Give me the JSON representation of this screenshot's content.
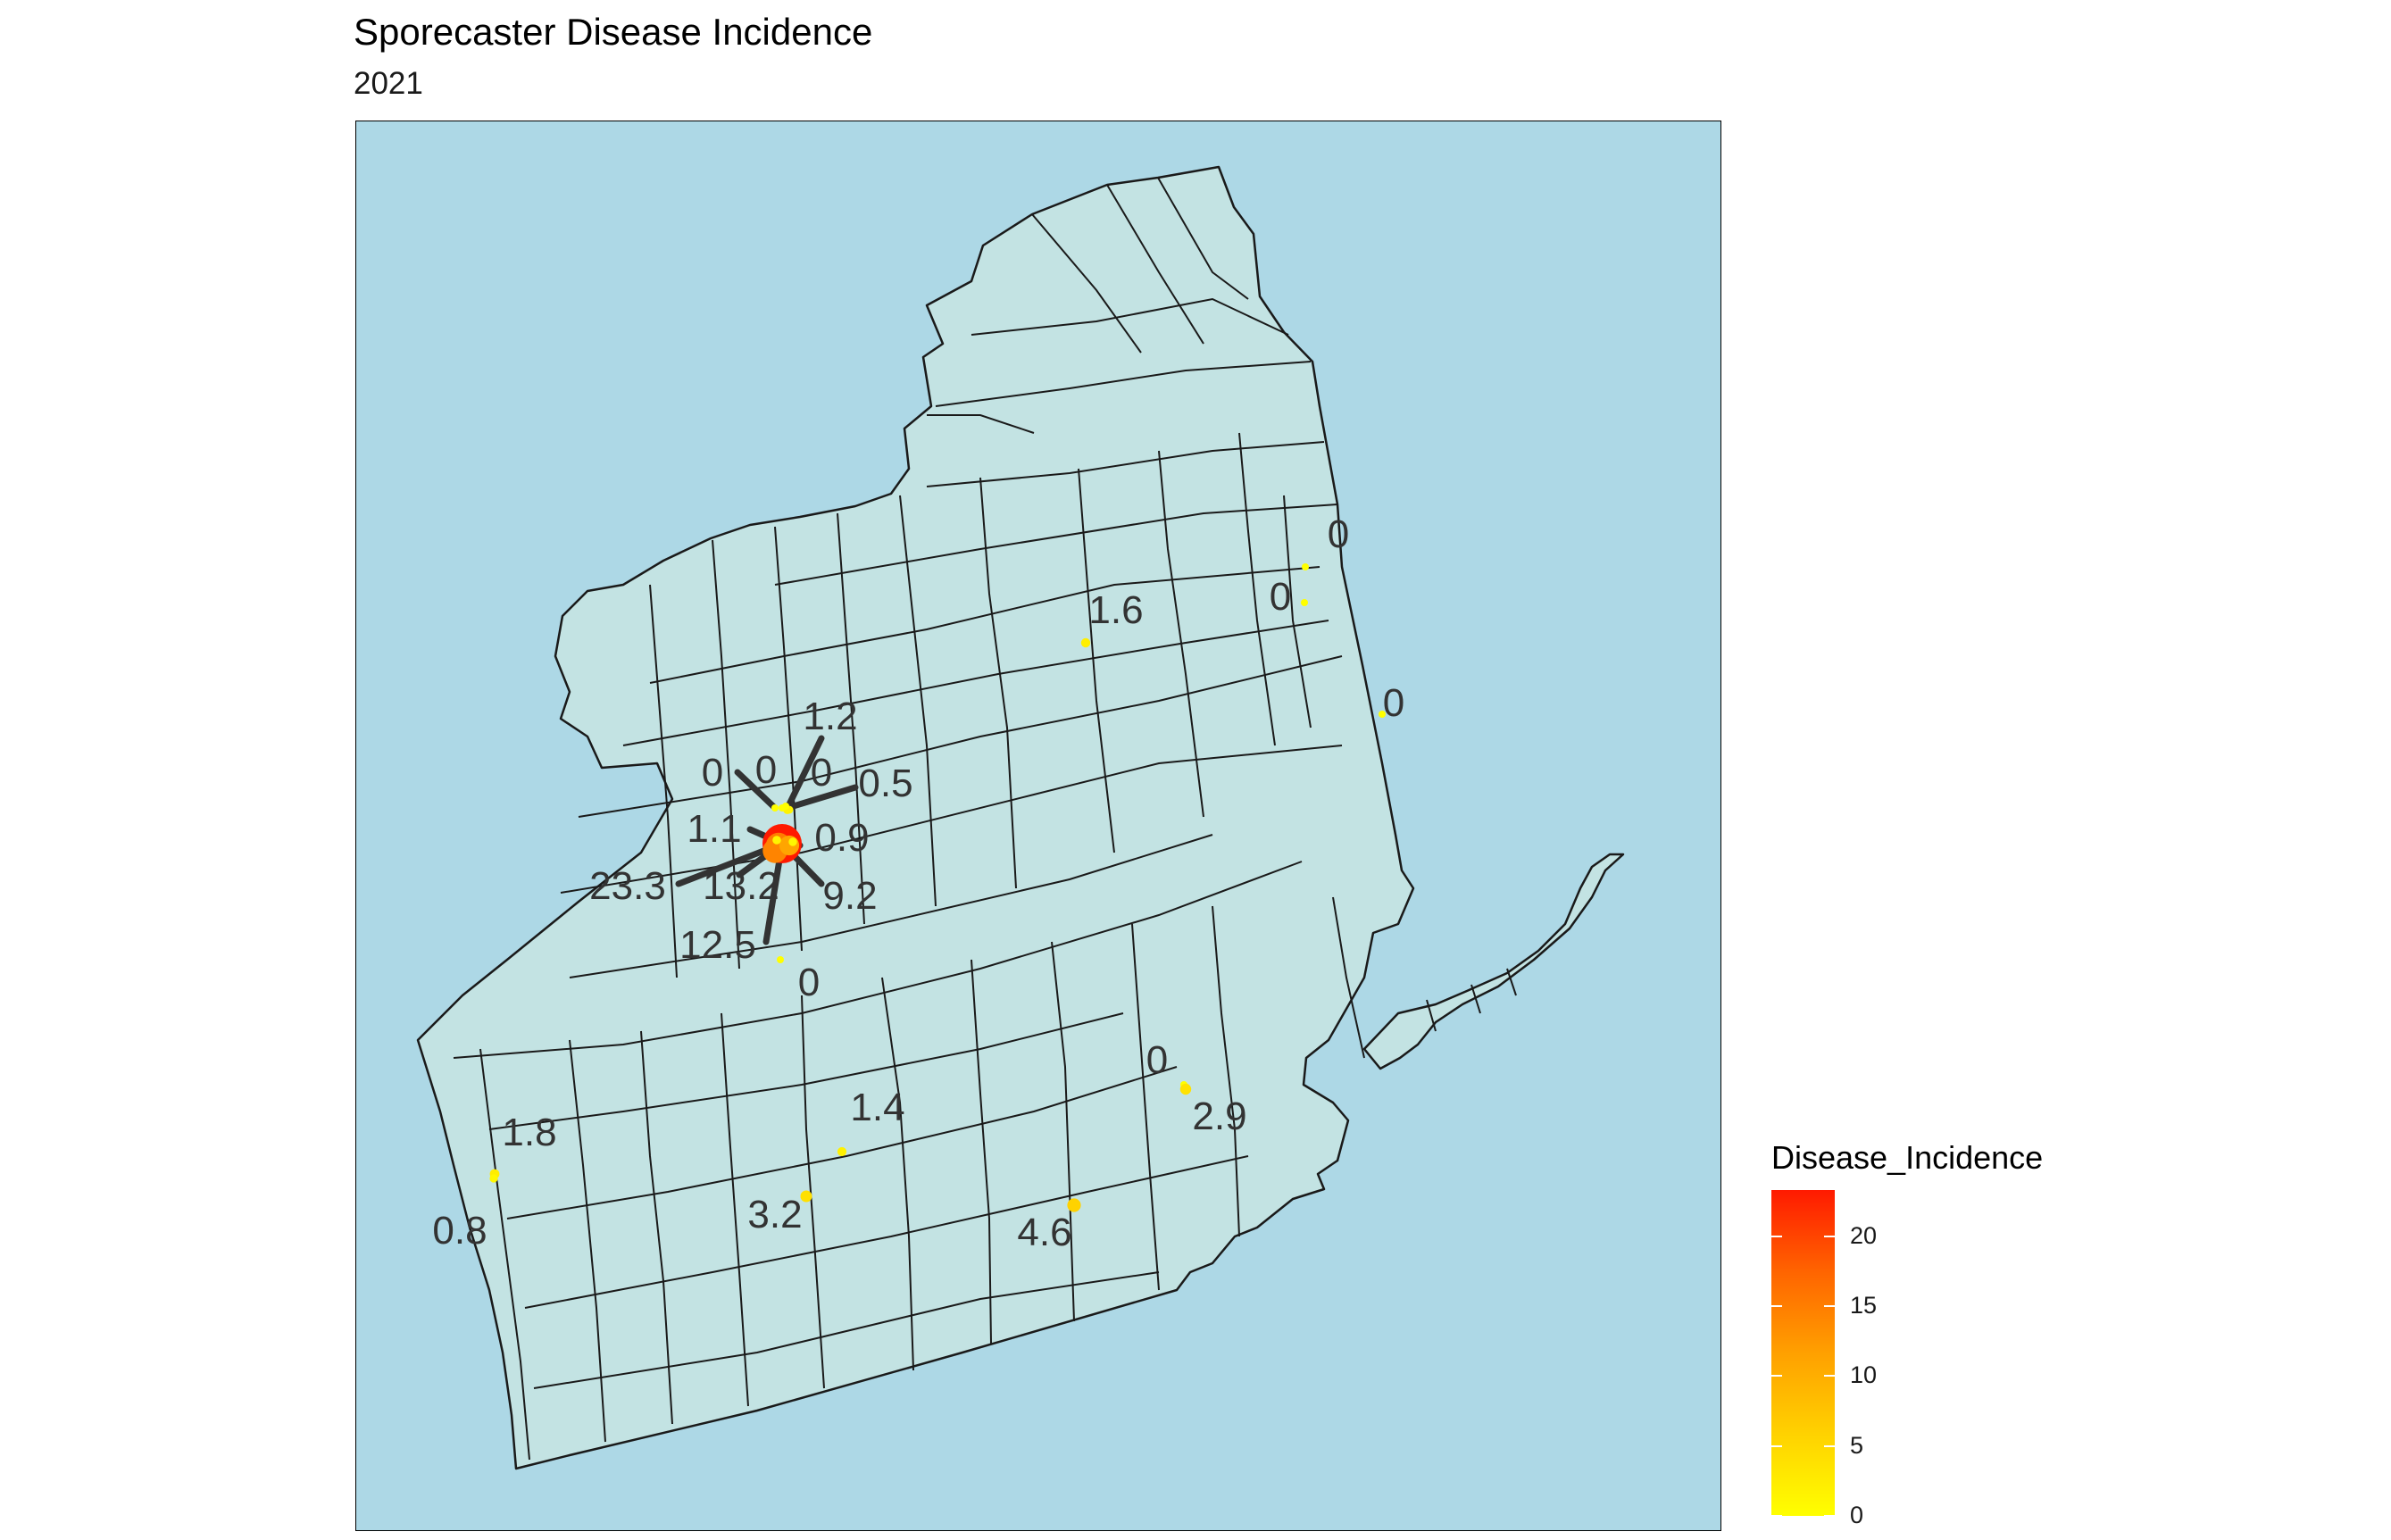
{
  "title": "Sporecaster Disease Incidence",
  "subtitle": "2021",
  "colors": {
    "sea": "#add8e6",
    "land": "#c3e3e3",
    "border": "#1a1a1a",
    "label_line": "#333333",
    "scale_low": "#ffff00",
    "scale_high": "#ff1a00"
  },
  "legend": {
    "title": "Disease_Incidence",
    "ticks": [
      {
        "value": 0,
        "label": "0"
      },
      {
        "value": 5,
        "label": "5"
      },
      {
        "value": 10,
        "label": "10"
      },
      {
        "value": 15,
        "label": "15"
      },
      {
        "value": 20,
        "label": "20"
      }
    ],
    "max": 23.3
  },
  "sites": [
    {
      "id": "s1",
      "value": 23.3,
      "label": "23.3"
    },
    {
      "id": "s2",
      "value": 13.2,
      "label": "13.2"
    },
    {
      "id": "s3",
      "value": 12.5,
      "label": "12.5"
    },
    {
      "id": "s4",
      "value": 9.2,
      "label": "9.2"
    },
    {
      "id": "s5",
      "value": 1.1,
      "label": "1.1"
    },
    {
      "id": "s6",
      "value": 0.9,
      "label": "0.9"
    },
    {
      "id": "s7",
      "value": 0.5,
      "label": "0.5"
    },
    {
      "id": "s8",
      "value": 1.2,
      "label": "1.2"
    },
    {
      "id": "s9",
      "value": 0,
      "label": "0"
    },
    {
      "id": "s10",
      "value": 0,
      "label": "0"
    },
    {
      "id": "s11",
      "value": 0,
      "label": "0"
    },
    {
      "id": "s12",
      "value": 0,
      "label": "0"
    },
    {
      "id": "s13",
      "value": 1.6,
      "label": "1.6"
    },
    {
      "id": "s14",
      "value": 0,
      "label": "0"
    },
    {
      "id": "s15",
      "value": 0,
      "label": "0"
    },
    {
      "id": "s16",
      "value": 0,
      "label": "0"
    },
    {
      "id": "s17",
      "value": 0,
      "label": "0"
    },
    {
      "id": "s18",
      "value": 2.9,
      "label": "2.9"
    },
    {
      "id": "s19",
      "value": 1.4,
      "label": "1.4"
    },
    {
      "id": "s20",
      "value": 1.8,
      "label": "1.8"
    },
    {
      "id": "s21",
      "value": 0.8,
      "label": "0.8"
    },
    {
      "id": "s22",
      "value": 3.2,
      "label": "3.2"
    },
    {
      "id": "s23",
      "value": 4.6,
      "label": "4.6"
    }
  ]
}
